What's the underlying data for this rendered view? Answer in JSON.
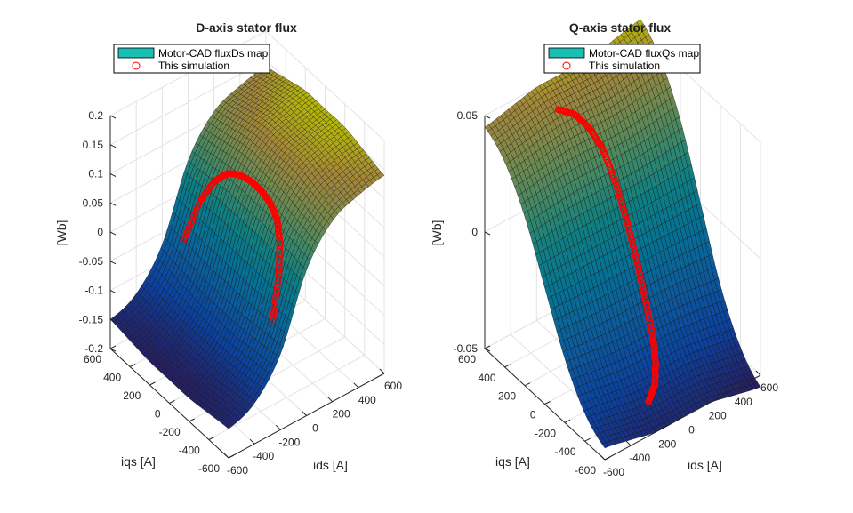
{
  "chart_data": [
    {
      "type": "surface",
      "title": "D-axis stator flux",
      "xlabel": "ids [A]",
      "ylabel": "iqs [A]",
      "zlabel": "[Wb]",
      "xlim": [
        -600,
        600
      ],
      "ylim": [
        -600,
        600
      ],
      "zlim": [
        -0.2,
        0.2
      ],
      "xticks": [
        "-600",
        "-400",
        "-200",
        "0",
        "200",
        "400",
        "600"
      ],
      "yticks": [
        "-600",
        "-400",
        "-200",
        "0",
        "200",
        "400",
        "600"
      ],
      "zticks": [
        "-0.2",
        "-0.15",
        "-0.1",
        "-0.05",
        "0",
        "0.05",
        "0.1",
        "0.15",
        "0.2"
      ],
      "grid": true,
      "colormap": "parula",
      "legend": {
        "placement": "top-left",
        "entries": [
          "Motor-CAD fluxDs map",
          "This simulation"
        ]
      },
      "map": {
        "ids": [
          -600,
          -400,
          -200,
          0,
          200,
          400,
          600
        ],
        "iqs": [
          -600,
          -400,
          -200,
          0,
          200,
          400,
          600
        ],
        "flux": [
          [
            -0.15,
            -0.13,
            -0.07,
            0.05,
            0.11,
            0.13,
            0.14
          ],
          [
            -0.155,
            -0.135,
            -0.075,
            0.055,
            0.12,
            0.14,
            0.15
          ],
          [
            -0.16,
            -0.14,
            -0.08,
            0.06,
            0.13,
            0.15,
            0.16
          ],
          [
            -0.16,
            -0.14,
            -0.08,
            0.06,
            0.13,
            0.15,
            0.16
          ],
          [
            -0.16,
            -0.14,
            -0.08,
            0.06,
            0.13,
            0.15,
            0.16
          ],
          [
            -0.155,
            -0.135,
            -0.075,
            0.055,
            0.12,
            0.14,
            0.15
          ],
          [
            -0.15,
            -0.13,
            -0.07,
            0.05,
            0.11,
            0.13,
            0.14
          ]
        ]
      },
      "simulation": {
        "ids": [
          -150,
          -60,
          0,
          40,
          60,
          70,
          70,
          60,
          40,
          0,
          -60,
          -150
        ],
        "iqs": [
          450,
          400,
          330,
          250,
          150,
          50,
          -50,
          -150,
          -250,
          -330,
          -400,
          -450
        ]
      }
    },
    {
      "type": "surface",
      "title": "Q-axis stator flux",
      "xlabel": "ids [A]",
      "ylabel": "iqs [A]",
      "zlabel": "[Wb]",
      "xlim": [
        -600,
        600
      ],
      "ylim": [
        -600,
        600
      ],
      "zlim": [
        -0.05,
        0.05
      ],
      "xticks": [
        "-600",
        "-400",
        "-200",
        "0",
        "200",
        "400",
        "600"
      ],
      "yticks": [
        "-600",
        "-400",
        "-200",
        "0",
        "200",
        "400",
        "600"
      ],
      "zticks": [
        "-0.05",
        "0",
        "0.05"
      ],
      "grid": true,
      "colormap": "parula",
      "legend": {
        "placement": "top-left",
        "entries": [
          "Motor-CAD fluxQs map",
          "This simulation"
        ]
      },
      "map": {
        "ids": [
          -600,
          -400,
          -200,
          0,
          200,
          400,
          600
        ],
        "iqs": [
          -600,
          -400,
          -200,
          0,
          200,
          400,
          600
        ],
        "flux": [
          [
            -0.045,
            -0.0475,
            -0.05,
            -0.05,
            -0.05,
            -0.0525,
            -0.055
          ],
          [
            -0.038,
            -0.04,
            -0.042,
            -0.042,
            -0.042,
            -0.044,
            -0.046
          ],
          [
            -0.0225,
            -0.024,
            -0.025,
            -0.025,
            -0.025,
            -0.026,
            -0.0275
          ],
          [
            0,
            0,
            0,
            0,
            0,
            0,
            0
          ],
          [
            0.0225,
            0.024,
            0.025,
            0.025,
            0.025,
            0.026,
            0.0275
          ],
          [
            0.038,
            0.04,
            0.042,
            0.042,
            0.042,
            0.044,
            0.046
          ],
          [
            0.045,
            0.0475,
            0.05,
            0.05,
            0.05,
            0.0525,
            0.055
          ]
        ]
      },
      "simulation": {
        "ids": [
          -150,
          -60,
          0,
          40,
          60,
          70,
          70,
          60,
          40,
          0,
          -60,
          -150
        ],
        "iqs": [
          450,
          400,
          330,
          250,
          150,
          50,
          -50,
          -150,
          -250,
          -330,
          -400,
          -450
        ]
      }
    }
  ],
  "colors": {
    "surface_legend": "#17bfb5",
    "simulation": "#ff0000",
    "grid": "#e3e3e3",
    "axis": "#262626"
  }
}
